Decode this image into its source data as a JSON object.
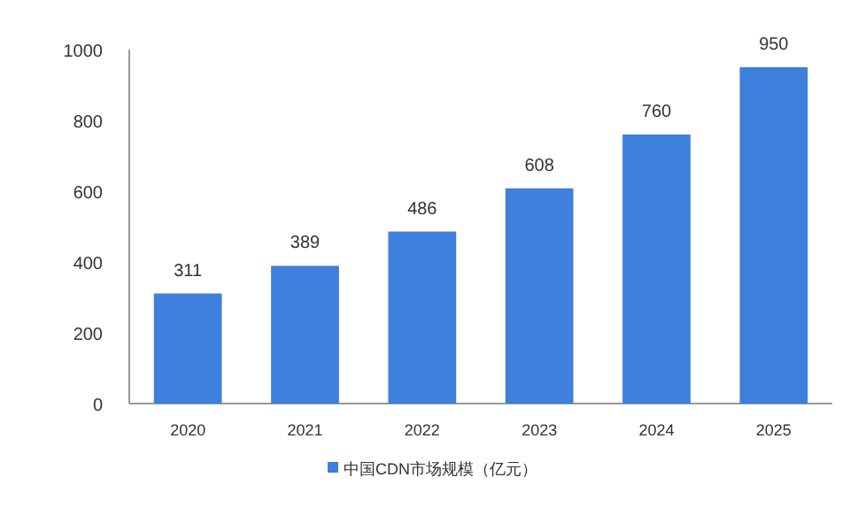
{
  "chart_data": {
    "type": "bar",
    "categories": [
      "2020",
      "2021",
      "2022",
      "2023",
      "2024",
      "2025"
    ],
    "series": [
      {
        "name": "中国CDN市场规模（亿元）",
        "color": "#3e80dc",
        "values": [
          311,
          389,
          486,
          608,
          760,
          950
        ]
      }
    ],
    "ylim": [
      0,
      1000
    ],
    "yticks": [
      0,
      200,
      400,
      600,
      800,
      1000
    ],
    "data_labels": true,
    "grid": false,
    "legend": "bottom"
  }
}
